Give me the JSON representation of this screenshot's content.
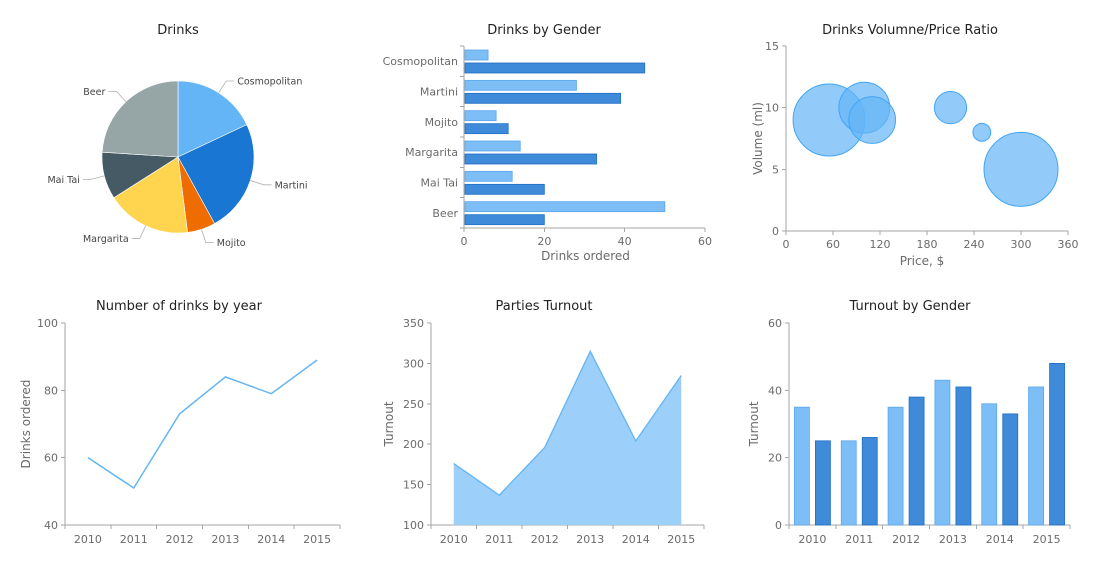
{
  "chart_data": [
    {
      "type": "pie",
      "title": "Drinks",
      "slices": [
        {
          "label": "Cosmopolitan",
          "value": 18,
          "color": "#64b5f6"
        },
        {
          "label": "Martini",
          "value": 24,
          "color": "#1976d2"
        },
        {
          "label": "Mojito",
          "value": 6,
          "color": "#ef6c00"
        },
        {
          "label": "Margarita",
          "value": 18,
          "color": "#ffd54f"
        },
        {
          "label": "Mai Tai",
          "value": 10,
          "color": "#455a64"
        },
        {
          "label": "Beer",
          "value": 24,
          "color": "#96a6a6"
        }
      ]
    },
    {
      "type": "bar",
      "orientation": "horizontal",
      "title": "Drinks by Gender",
      "xlabel": "Drinks ordered",
      "ylabel": "",
      "xlim": [
        0,
        60
      ],
      "xticks": [
        0,
        20,
        40,
        60
      ],
      "categories": [
        "Cosmopolitan",
        "Martini",
        "Mojito",
        "Margarita",
        "Mai Tai",
        "Beer"
      ],
      "series": [
        {
          "values": [
            6,
            28,
            8,
            14,
            12,
            50
          ],
          "color": "#7dbef6"
        },
        {
          "values": [
            45,
            39,
            11,
            33,
            20,
            20
          ],
          "color": "#3f8ad9"
        }
      ]
    },
    {
      "type": "scatter",
      "subtype": "bubble",
      "title": "Drinks Volumne/Price Ratio",
      "xlabel": "Price, $",
      "ylabel": "Volume (ml)",
      "xlim": [
        0,
        360
      ],
      "ylim": [
        0,
        15
      ],
      "xticks": [
        0,
        60,
        120,
        180,
        240,
        300,
        360
      ],
      "yticks": [
        0,
        5,
        10,
        15
      ],
      "color": "#64b5f6",
      "points": [
        {
          "x": 55,
          "y": 9,
          "size": 9
        },
        {
          "x": 100,
          "y": 10,
          "size": 4.5
        },
        {
          "x": 110,
          "y": 9,
          "size": 3.8
        },
        {
          "x": 210,
          "y": 10,
          "size": 1.8
        },
        {
          "x": 250,
          "y": 8,
          "size": 0.55
        },
        {
          "x": 300,
          "y": 5,
          "size": 9.5
        }
      ]
    },
    {
      "type": "line",
      "title": "Number of drinks by year",
      "xlabel": "",
      "ylabel": "Drinks ordered",
      "ylim": [
        40,
        100
      ],
      "yticks": [
        40,
        60,
        80,
        100
      ],
      "categories": [
        "2010",
        "2011",
        "2012",
        "2013",
        "2014",
        "2015"
      ],
      "values": [
        60,
        51,
        73,
        84,
        79,
        89
      ],
      "color": "#64b5f6"
    },
    {
      "type": "area",
      "title": "Parties Turnout",
      "xlabel": "",
      "ylabel": "Turnout",
      "ylim": [
        100,
        350
      ],
      "yticks": [
        100,
        150,
        200,
        250,
        300,
        350
      ],
      "categories": [
        "2010",
        "2011",
        "2012",
        "2013",
        "2014",
        "2015"
      ],
      "values": [
        176,
        137,
        196,
        315,
        204,
        285
      ],
      "color": "#9ccff9",
      "stroke": "#64b5f6"
    },
    {
      "type": "bar",
      "title": "Turnout by Gender",
      "xlabel": "",
      "ylabel": "Turnout",
      "ylim": [
        0,
        60
      ],
      "yticks": [
        0,
        20,
        40,
        60
      ],
      "categories": [
        "2010",
        "2011",
        "2012",
        "2013",
        "2014",
        "2015"
      ],
      "series": [
        {
          "values": [
            35,
            25,
            35,
            43,
            36,
            41
          ],
          "color": "#7dbef6"
        },
        {
          "values": [
            25,
            26,
            38,
            41,
            33,
            48
          ],
          "color": "#3f8ad9"
        }
      ]
    }
  ]
}
